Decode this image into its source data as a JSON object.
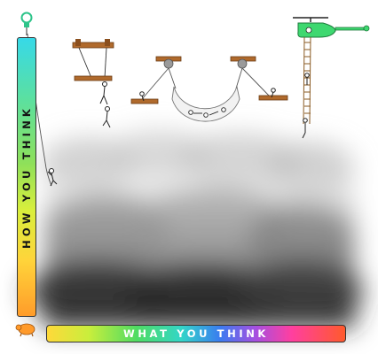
{
  "axes": {
    "vertical_label": "HOW YOU THINK",
    "horizontal_label": "WHAT YOU THINK"
  },
  "colors": {
    "vertical_gradient": [
      "#37d9e8",
      "#8ee05a",
      "#ffd43a",
      "#ff9c2a"
    ],
    "horizontal_gradient": [
      "#ffd93a",
      "#4fdc62",
      "#3a7cf0",
      "#a64fe0",
      "#ff3fa0",
      "#ff5a2c"
    ],
    "helicopter": "#3ed870",
    "wood": "#b06a2c",
    "fog": "#444444"
  },
  "icons": [
    "lightbulb-icon",
    "turtle-icon",
    "helicopter-icon",
    "stick-figure-icon"
  ]
}
